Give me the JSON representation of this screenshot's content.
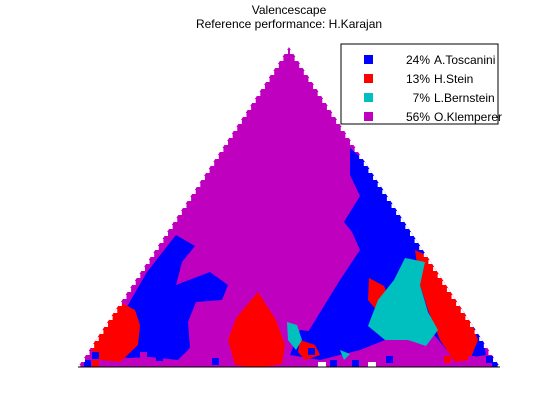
{
  "chart_data": {
    "type": "heatmap",
    "subtype": "ternary-triangle",
    "title": "Valencescape",
    "subtitle": "Reference performance: H.Karajan",
    "legend_position": "top-right",
    "grid": false,
    "series": [
      {
        "name": "A.Toscanini",
        "share_label": "24%",
        "color": "#0000ff"
      },
      {
        "name": "H.Stein",
        "share_label": "13%",
        "color": "#ff0000"
      },
      {
        "name": "L.Bernstein",
        "share_label": "7%",
        "color": "#00bfbf"
      },
      {
        "name": "O.Klemperer",
        "share_label": "56%",
        "color": "#bf00bf"
      }
    ],
    "background_color": "#bf00bf"
  }
}
